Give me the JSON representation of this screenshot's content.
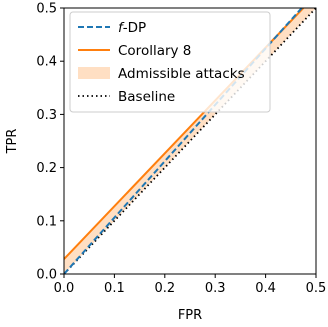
{
  "chart_data": {
    "type": "line",
    "xlabel": "FPR",
    "ylabel": "TPR",
    "xlim": [
      0.0,
      0.5
    ],
    "ylim": [
      0.0,
      0.5
    ],
    "xticks": [
      "0.0",
      "0.1",
      "0.2",
      "0.3",
      "0.4",
      "0.5"
    ],
    "yticks": [
      "0.0",
      "0.1",
      "0.2",
      "0.3",
      "0.4",
      "0.5"
    ],
    "grid": false,
    "legend_position": "top-left",
    "series": [
      {
        "name": "f-DP",
        "name_prefix": "f",
        "name_suffix": "-DP",
        "style": "dashed",
        "color": "#1f77b4",
        "x": [
          0.0,
          0.5
        ],
        "y": [
          0.0,
          0.53
        ]
      },
      {
        "name": "Corollary 8",
        "style": "solid",
        "color": "#ff7f0e",
        "x": [
          0.0,
          0.5
        ],
        "y": [
          0.028,
          0.525
        ]
      },
      {
        "name": "Baseline",
        "style": "dotted",
        "color": "#000000",
        "x": [
          0.0,
          0.5
        ],
        "y": [
          0.0,
          0.5
        ]
      }
    ],
    "band": {
      "name": "Admissible attacks",
      "color": "#ff7f0e",
      "opacity": 0.25,
      "x": [
        0.0,
        0.5
      ],
      "y_lower": [
        0.0,
        0.5
      ],
      "y_upper": [
        0.028,
        0.525
      ]
    }
  }
}
